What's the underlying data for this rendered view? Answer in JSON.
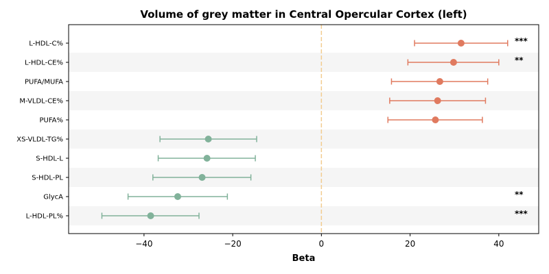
{
  "chart_data": {
    "type": "forest",
    "title": "Volume of grey matter in Central Opercular Cortex (left)",
    "xlabel": "Beta",
    "xlim": [
      -57,
      49
    ],
    "xticks": [
      -40,
      -20,
      0,
      20,
      40
    ],
    "xtick_labels": [
      "−40",
      "−20",
      "0",
      "20",
      "40"
    ],
    "reference_line": 0,
    "colors": {
      "positive": "#E07A5F",
      "negative": "#81B29A",
      "reference_line": "#F2CC8F",
      "band": "#F5F5F5"
    },
    "rows": [
      {
        "label": "L-HDL-C%",
        "beta": 31.5,
        "ci_low": 21.0,
        "ci_high": 42.0,
        "sig": "***"
      },
      {
        "label": "L-HDL-CE%",
        "beta": 29.8,
        "ci_low": 19.5,
        "ci_high": 40.0,
        "sig": "**"
      },
      {
        "label": "PUFA/MUFA",
        "beta": 26.7,
        "ci_low": 15.8,
        "ci_high": 37.5,
        "sig": ""
      },
      {
        "label": "M-VLDL-CE%",
        "beta": 26.2,
        "ci_low": 15.4,
        "ci_high": 37.0,
        "sig": ""
      },
      {
        "label": "PUFA%",
        "beta": 25.7,
        "ci_low": 15.0,
        "ci_high": 36.3,
        "sig": ""
      },
      {
        "label": "XS-VLDL-TG%",
        "beta": -25.5,
        "ci_low": -36.4,
        "ci_high": -14.6,
        "sig": ""
      },
      {
        "label": "S-HDL-L",
        "beta": -25.8,
        "ci_low": -36.8,
        "ci_high": -14.9,
        "sig": ""
      },
      {
        "label": "S-HDL-PL",
        "beta": -26.9,
        "ci_low": -38.0,
        "ci_high": -15.9,
        "sig": ""
      },
      {
        "label": "GlycA",
        "beta": -32.4,
        "ci_low": -43.6,
        "ci_high": -21.2,
        "sig": "**"
      },
      {
        "label": "L-HDL-PL%",
        "beta": -38.5,
        "ci_low": -49.5,
        "ci_high": -27.6,
        "sig": "***"
      }
    ]
  }
}
